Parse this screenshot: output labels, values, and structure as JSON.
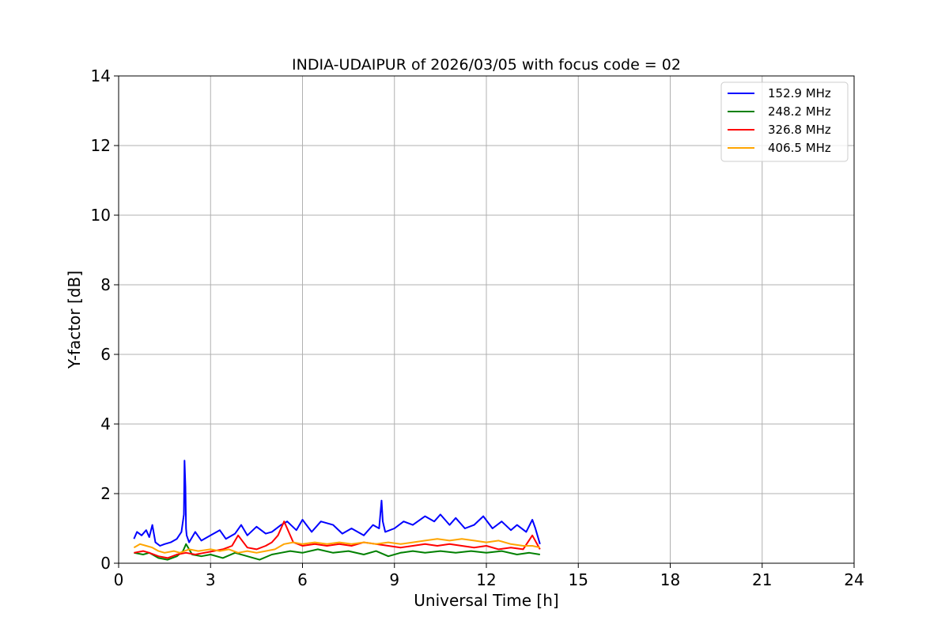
{
  "chart_data": {
    "type": "line",
    "title": "INDIA-UDAIPUR of 2026/03/05 with focus code = 02",
    "xlabel": "Universal Time [h]",
    "ylabel": "Y-factor [dB]",
    "xlim": [
      0,
      24
    ],
    "ylim": [
      0,
      14
    ],
    "xticks": [
      0,
      3,
      6,
      9,
      12,
      15,
      18,
      21,
      24
    ],
    "yticks": [
      0,
      2,
      4,
      6,
      8,
      10,
      12,
      14
    ],
    "xtick_labels": [
      "0",
      "3",
      "6",
      "9",
      "12",
      "15",
      "18",
      "21",
      "24"
    ],
    "ytick_labels": [
      "0",
      "2",
      "4",
      "6",
      "8",
      "10",
      "12",
      "14"
    ],
    "grid": true,
    "legend_position": "top-right",
    "series": [
      {
        "name": "152.9 MHz",
        "color": "#0000ff",
        "x": [
          0.5,
          0.6,
          0.75,
          0.9,
          1.0,
          1.1,
          1.2,
          1.35,
          1.5,
          1.7,
          1.9,
          2.05,
          2.13,
          2.15,
          2.18,
          2.2,
          2.22,
          2.3,
          2.5,
          2.7,
          3.0,
          3.3,
          3.5,
          3.8,
          4.0,
          4.2,
          4.5,
          4.8,
          5.0,
          5.3,
          5.5,
          5.8,
          6.0,
          6.3,
          6.6,
          7.0,
          7.3,
          7.6,
          8.0,
          8.3,
          8.5,
          8.58,
          8.62,
          8.7,
          9.0,
          9.3,
          9.6,
          10.0,
          10.3,
          10.5,
          10.8,
          11.0,
          11.3,
          11.6,
          11.9,
          12.2,
          12.5,
          12.8,
          13.0,
          13.3,
          13.5,
          13.6,
          13.75
        ],
        "y": [
          0.7,
          0.9,
          0.8,
          0.95,
          0.75,
          1.1,
          0.6,
          0.5,
          0.55,
          0.6,
          0.7,
          0.9,
          1.4,
          2.95,
          2.2,
          1.0,
          0.8,
          0.6,
          0.9,
          0.65,
          0.8,
          0.95,
          0.7,
          0.85,
          1.1,
          0.8,
          1.05,
          0.85,
          0.9,
          1.1,
          1.2,
          0.95,
          1.25,
          0.9,
          1.2,
          1.1,
          0.85,
          1.0,
          0.8,
          1.1,
          1.0,
          1.8,
          1.2,
          0.9,
          1.0,
          1.2,
          1.1,
          1.35,
          1.2,
          1.4,
          1.1,
          1.3,
          1.0,
          1.1,
          1.35,
          1.0,
          1.2,
          0.95,
          1.1,
          0.9,
          1.25,
          1.0,
          0.55
        ]
      },
      {
        "name": "248.2 MHz",
        "color": "#008000",
        "x": [
          0.5,
          0.8,
          1.0,
          1.3,
          1.6,
          1.9,
          2.1,
          2.2,
          2.4,
          2.7,
          3.0,
          3.4,
          3.8,
          4.2,
          4.6,
          5.0,
          5.3,
          5.6,
          6.0,
          6.5,
          7.0,
          7.5,
          8.0,
          8.4,
          8.8,
          9.2,
          9.6,
          10.0,
          10.5,
          11.0,
          11.5,
          12.0,
          12.5,
          13.0,
          13.4,
          13.75
        ],
        "y": [
          0.3,
          0.25,
          0.3,
          0.15,
          0.1,
          0.2,
          0.35,
          0.55,
          0.25,
          0.2,
          0.25,
          0.15,
          0.3,
          0.2,
          0.1,
          0.25,
          0.3,
          0.35,
          0.3,
          0.4,
          0.3,
          0.35,
          0.25,
          0.35,
          0.2,
          0.3,
          0.35,
          0.3,
          0.35,
          0.3,
          0.35,
          0.3,
          0.35,
          0.25,
          0.3,
          0.25
        ]
      },
      {
        "name": "326.8 MHz",
        "color": "#ff0000",
        "x": [
          0.5,
          0.8,
          1.0,
          1.3,
          1.6,
          1.9,
          2.2,
          2.5,
          2.8,
          3.1,
          3.4,
          3.7,
          3.9,
          4.2,
          4.5,
          4.8,
          5.0,
          5.2,
          5.4,
          5.7,
          6.0,
          6.4,
          6.8,
          7.2,
          7.6,
          8.0,
          8.4,
          8.8,
          9.2,
          9.6,
          10.0,
          10.4,
          10.8,
          11.2,
          11.6,
          12.0,
          12.4,
          12.8,
          13.2,
          13.5,
          13.75
        ],
        "y": [
          0.3,
          0.35,
          0.3,
          0.2,
          0.15,
          0.25,
          0.3,
          0.25,
          0.3,
          0.35,
          0.4,
          0.5,
          0.8,
          0.45,
          0.4,
          0.5,
          0.6,
          0.8,
          1.2,
          0.6,
          0.5,
          0.55,
          0.5,
          0.55,
          0.5,
          0.6,
          0.55,
          0.5,
          0.45,
          0.5,
          0.55,
          0.5,
          0.55,
          0.5,
          0.45,
          0.5,
          0.4,
          0.45,
          0.4,
          0.8,
          0.4
        ]
      },
      {
        "name": "406.5 MHz",
        "color": "#ffa500",
        "x": [
          0.5,
          0.7,
          0.9,
          1.1,
          1.3,
          1.5,
          1.8,
          2.0,
          2.3,
          2.6,
          3.0,
          3.3,
          3.6,
          3.9,
          4.2,
          4.5,
          4.8,
          5.1,
          5.4,
          5.7,
          6.0,
          6.4,
          6.8,
          7.2,
          7.6,
          8.0,
          8.4,
          8.8,
          9.2,
          9.6,
          10.0,
          10.4,
          10.8,
          11.2,
          11.6,
          12.0,
          12.4,
          12.8,
          13.2,
          13.5,
          13.75
        ],
        "y": [
          0.45,
          0.55,
          0.5,
          0.45,
          0.35,
          0.3,
          0.35,
          0.3,
          0.4,
          0.35,
          0.4,
          0.35,
          0.4,
          0.3,
          0.35,
          0.3,
          0.35,
          0.4,
          0.55,
          0.6,
          0.55,
          0.6,
          0.55,
          0.6,
          0.55,
          0.6,
          0.55,
          0.6,
          0.55,
          0.6,
          0.65,
          0.7,
          0.65,
          0.7,
          0.65,
          0.6,
          0.65,
          0.55,
          0.5,
          0.5,
          0.45
        ]
      }
    ]
  }
}
